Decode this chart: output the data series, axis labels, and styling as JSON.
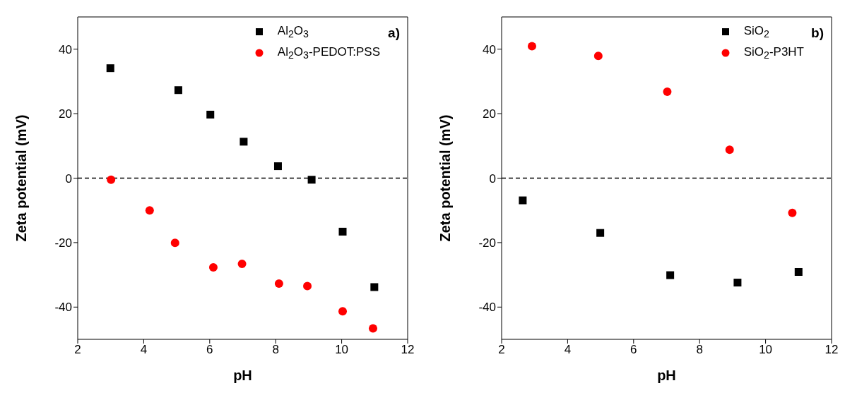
{
  "chart_data": [
    {
      "type": "scatter",
      "xlabel": "pH",
      "ylabel": "Zeta potential (mV)",
      "xlim": [
        2,
        12
      ],
      "xticks": [
        2,
        4,
        6,
        8,
        10,
        12
      ],
      "ylim": [
        -50,
        50
      ],
      "yticks": [
        -40,
        -20,
        0,
        20,
        40
      ],
      "grid": false,
      "legend": "top right",
      "annotations": [
        "a)"
      ],
      "ref_lines": [
        {
          "axis": "y",
          "value": 0,
          "line_style": "dashed",
          "color": "#000000"
        }
      ],
      "series": [
        {
          "name": "Al$_{2}$O$_{3}$",
          "color": "#000000",
          "marker": "square",
          "x": [
            2.99,
            5.05,
            6.02,
            7.03,
            8.07,
            9.09,
            10.03,
            10.99
          ],
          "values": [
            34.1,
            27.3,
            19.7,
            11.3,
            3.7,
            -0.5,
            -16.6,
            -33.8
          ]
        },
        {
          "name": "Al$_{2}$O$_{3}$-PEDOT:PSS",
          "color": "#ff0000",
          "marker": "circle",
          "x": [
            3.01,
            4.18,
            4.95,
            6.11,
            6.98,
            8.1,
            8.96,
            10.03,
            10.95
          ],
          "values": [
            -0.5,
            -10.0,
            -20.1,
            -27.7,
            -26.6,
            -32.7,
            -33.5,
            -41.3,
            -46.6
          ]
        }
      ]
    },
    {
      "type": "scatter",
      "xlabel": "pH",
      "ylabel": "Zeta potential (mV)",
      "xlim": [
        2,
        12
      ],
      "xticks": [
        2,
        4,
        6,
        8,
        10,
        12
      ],
      "ylim": [
        -50,
        50
      ],
      "yticks": [
        -40,
        -20,
        0,
        20,
        40
      ],
      "grid": false,
      "legend": "top right",
      "annotations": [
        "b)"
      ],
      "ref_lines": [
        {
          "axis": "y",
          "value": 0,
          "line_style": "dashed",
          "color": "#000000"
        }
      ],
      "series": [
        {
          "name": "SiO$_{2}$",
          "color": "#000000",
          "marker": "square",
          "x": [
            2.64,
            4.99,
            7.11,
            9.15,
            11.0
          ],
          "values": [
            -6.9,
            -17.0,
            -30.1,
            -32.4,
            -29.1
          ]
        },
        {
          "name": "SiO$_{2}$-P3HT",
          "color": "#ff0000",
          "marker": "circle",
          "x": [
            2.92,
            4.93,
            7.02,
            8.91,
            10.81
          ],
          "values": [
            40.9,
            37.9,
            26.8,
            8.8,
            -10.8
          ]
        }
      ]
    }
  ]
}
